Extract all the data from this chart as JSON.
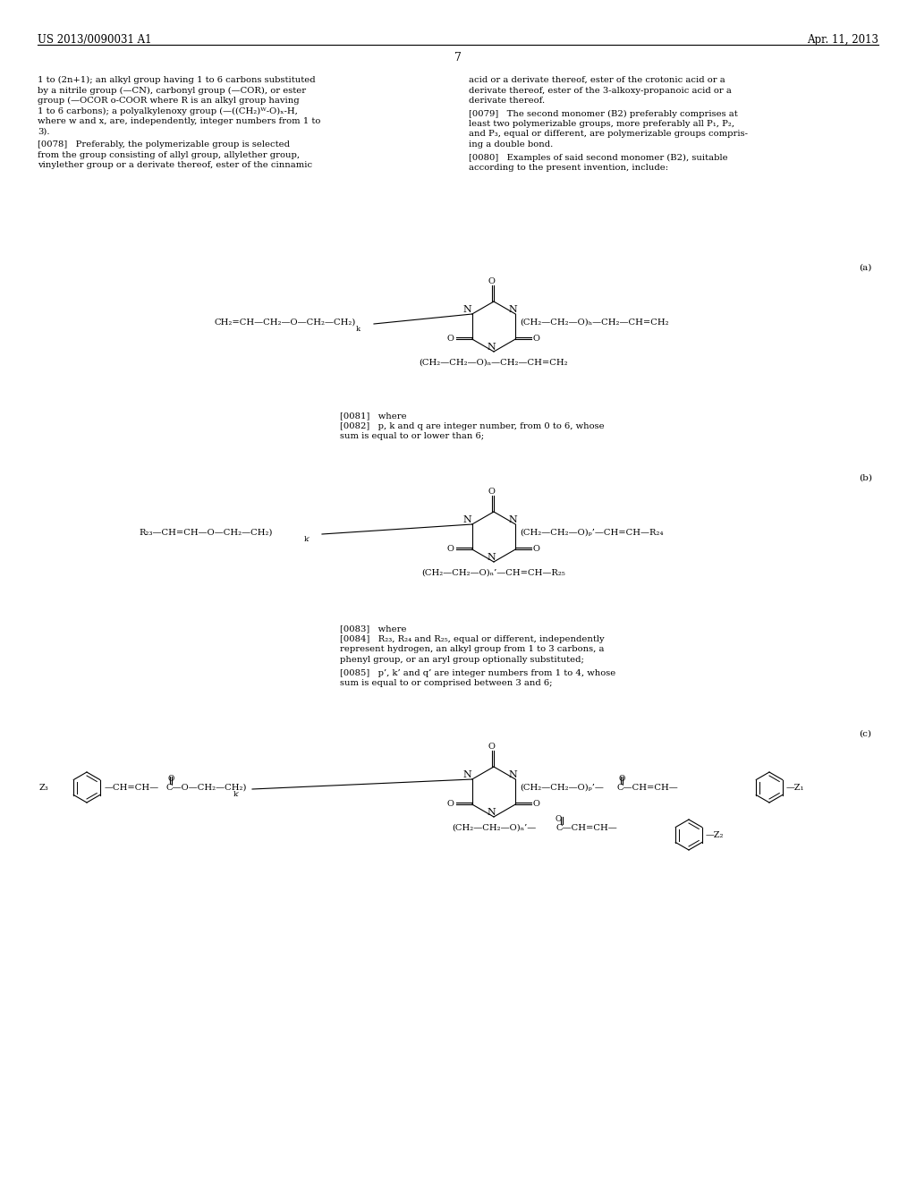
{
  "bg": "#ffffff",
  "header_left": "US 2013/0090031 A1",
  "header_right": "Apr. 11, 2013",
  "page_num": "7",
  "para_left1": [
    "1 to (2n+1); an alkyl group having 1 to 6 carbons substituted",
    "by a nitrile group (—CN), carbonyl group (—COR), or ester",
    "group (—OCOR o-COOR where R is an alkyl group having",
    "1 to 6 carbons); a polyalkylenoxy group (—((CH₂)ᵂ-O)ₓ-H,",
    "where w and x, are, independently, integer numbers from 1 to",
    "3)."
  ],
  "para_left2": [
    "[0078]   Preferably, the polymerizable group is selected",
    "from the group consisting of allyl group, allylether group,",
    "vinylether group or a derivate thereof, ester of the cinnamic"
  ],
  "para_right1": [
    "acid or a derivate thereof, ester of the crotonic acid or a",
    "derivate thereof, ester of the 3-alkoxy-propanoic acid or a",
    "derivate thereof."
  ],
  "para_right2": [
    "[0079]   The second monomer (B2) preferably comprises at",
    "least two polymerizable groups, more preferably all P₁, P₂,",
    "and P₃, equal or different, are polymerizable groups compris-",
    "ing a double bond."
  ],
  "para_right3": [
    "[0080]   Examples of said second monomer (B2), suitable",
    "according to the present invention, include:"
  ],
  "para_0081": "[0081]   where",
  "para_0082": [
    "[0082]   p, k and q are integer number, from 0 to 6, whose",
    "sum is equal to or lower than 6;"
  ],
  "para_0083": "[0083]   where",
  "para_0084": [
    "[0084]   R₂₃, R₂₄ and R₂₅, equal or different, independently",
    "represent hydrogen, an alkyl group from 1 to 3 carbons, a",
    "phenyl group, or an aryl group optionally substituted;"
  ],
  "para_0085": [
    "[0085]   p’, k’ and q’ are integer numbers from 1 to 4, whose",
    "sum is equal to or comprised between 3 and 6;"
  ],
  "label_a": "(a)",
  "label_b": "(b)",
  "label_c": "(c)"
}
